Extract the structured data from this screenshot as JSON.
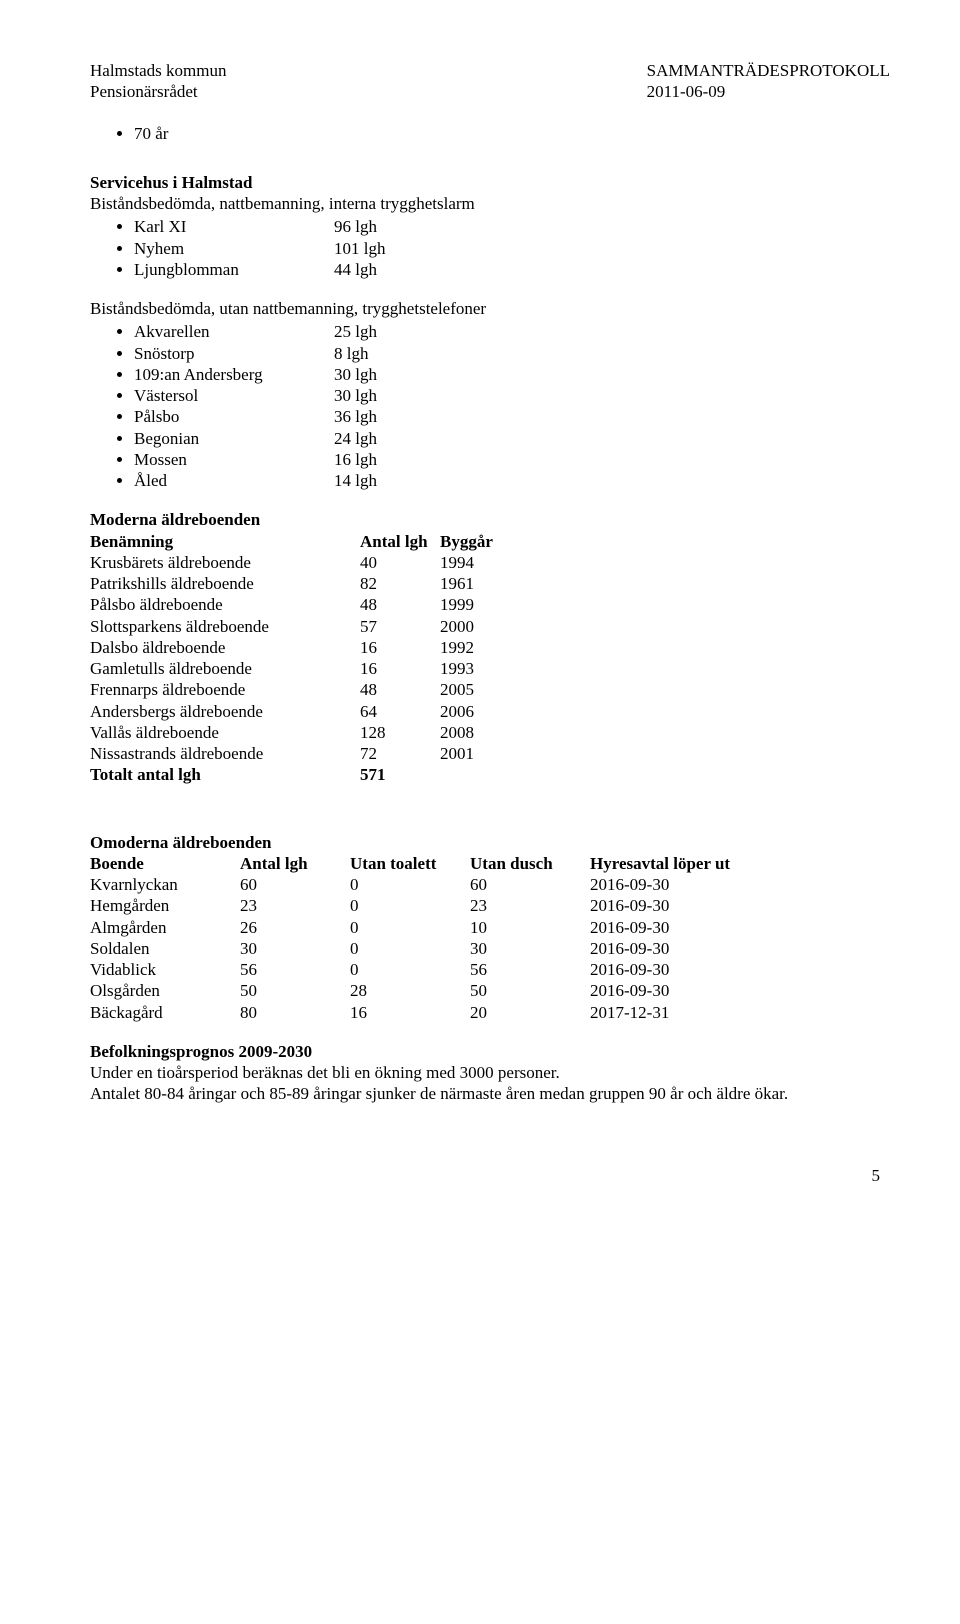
{
  "header": {
    "left_line1": "Halmstads kommun",
    "left_line2": "Pensionärsrådet",
    "right_line1": "SAMMANTRÄDESPROTOKOLL",
    "right_line2": "2011-06-09"
  },
  "top_bullet": "70 år",
  "section1": {
    "title": "Servicehus i Halmstad",
    "sub1": "Biståndsbedömda, nattbemanning, interna trygghetslarm",
    "list1": [
      {
        "label": "Karl XI",
        "value": "96 lgh"
      },
      {
        "label": "Nyhem",
        "value": "101 lgh"
      },
      {
        "label": "Ljungblomman",
        "value": "44 lgh"
      }
    ],
    "sub2": "Biståndsbedömda, utan nattbemanning, trygghetstelefoner",
    "list2": [
      {
        "label": "Akvarellen",
        "value": "25 lgh"
      },
      {
        "label": "Snöstorp",
        "value": "8 lgh"
      },
      {
        "label": "109:an Andersberg",
        "value": "30 lgh"
      },
      {
        "label": "Västersol",
        "value": "30 lgh"
      },
      {
        "label": "Pålsbo",
        "value": "36 lgh"
      },
      {
        "label": "Begonian",
        "value": "24 lgh"
      },
      {
        "label": "Mossen",
        "value": "16 lgh"
      },
      {
        "label": "Åled",
        "value": "14 lgh"
      }
    ]
  },
  "section2": {
    "title": "Moderna äldreboenden",
    "h1": "Benämning",
    "h2": "Antal lgh",
    "h3": "Byggår",
    "rows": [
      {
        "c1": "Krusbärets äldreboende",
        "c2": "40",
        "c3": "1994"
      },
      {
        "c1": "Patrikshills äldreboende",
        "c2": "82",
        "c3": "1961"
      },
      {
        "c1": "Pålsbo äldreboende",
        "c2": "48",
        "c3": "1999"
      },
      {
        "c1": "Slottsparkens äldreboende",
        "c2": "57",
        "c3": "2000"
      },
      {
        "c1": "Dalsbo äldreboende",
        "c2": "16",
        "c3": "1992"
      },
      {
        "c1": "Gamletulls äldreboende",
        "c2": "16",
        "c3": "1993"
      },
      {
        "c1": "Frennarps äldreboende",
        "c2": "48",
        "c3": "2005"
      },
      {
        "c1": "Andersbergs äldreboende",
        "c2": "64",
        "c3": "2006"
      },
      {
        "c1": "Vallås äldreboende",
        "c2": "128",
        "c3": "2008"
      },
      {
        "c1": "Nissastrands äldreboende",
        "c2": "72",
        "c3": "2001"
      }
    ],
    "total_label": "Totalt antal lgh",
    "total_value": "571"
  },
  "section3": {
    "title": "Omoderna äldreboenden",
    "h1": "Boende",
    "h2": "Antal lgh",
    "h3": "Utan toalett",
    "h4": "Utan dusch",
    "h5": "Hyresavtal löper ut",
    "rows": [
      {
        "c1": "Kvarnlyckan",
        "c2": "60",
        "c3": "0",
        "c4": "60",
        "c5": "2016-09-30"
      },
      {
        "c1": "Hemgården",
        "c2": "23",
        "c3": "0",
        "c4": "23",
        "c5": "2016-09-30"
      },
      {
        "c1": "Almgården",
        "c2": "26",
        "c3": "0",
        "c4": "10",
        "c5": "2016-09-30"
      },
      {
        "c1": "Soldalen",
        "c2": "30",
        "c3": "0",
        "c4": "30",
        "c5": "2016-09-30"
      },
      {
        "c1": "Vidablick",
        "c2": "56",
        "c3": "0",
        "c4": "56",
        "c5": "2016-09-30"
      },
      {
        "c1": "Olsgården",
        "c2": "50",
        "c3": "28",
        "c4": "50",
        "c5": "2016-09-30"
      },
      {
        "c1": "Bäckagård",
        "c2": "80",
        "c3": "16",
        "c4": "20",
        "c5": "2017-12-31"
      }
    ]
  },
  "section4": {
    "title": "Befolkningsprognos 2009-2030",
    "line1": "Under en tioårsperiod beräknas det bli en ökning med 3000 personer.",
    "line2": "Antalet 80-84 åringar och 85-89 åringar sjunker de närmaste åren medan gruppen 90 år och äldre ökar."
  },
  "page_number": "5"
}
